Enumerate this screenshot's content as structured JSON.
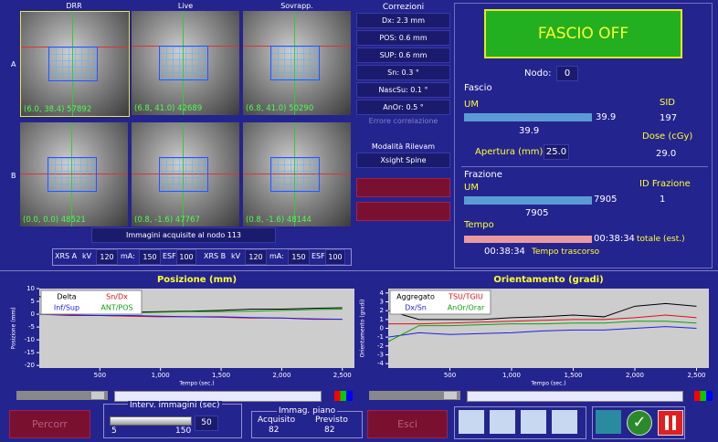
{
  "images": {
    "headers": [
      "DRR",
      "Live",
      "Sovrapp."
    ],
    "rows": [
      "A",
      "B"
    ],
    "captions": [
      [
        "(6.0, 38.4) 57892",
        "(6.8, 41.0) 42689",
        "(6.8, 41.0) 50290"
      ],
      [
        "(0.0, 0.0) 48521",
        "(0.8, -1.6) 47767",
        "(0.8, -1.6) 48144"
      ]
    ],
    "status": "Immagini acquisite al nodo 113"
  },
  "corrections": {
    "title": "Correzioni",
    "items": [
      "Dx: 2.3 mm",
      "POS: 0.6 mm",
      "SUP: 0.6 mm",
      "Sn: 0.3 °",
      "NascSu: 0.1 °",
      "AnOr: 0.5 °"
    ],
    "correlation_error": "Errore correlazione",
    "mode_label": "Modalità Rilevam",
    "mode": "Xsight Spine"
  },
  "xrs": [
    {
      "name": "XRS A",
      "kv_label": "kV",
      "kv": "120",
      "ma_label": "mA:",
      "ma": "150",
      "esf_label": "ESF",
      "esf": "100"
    },
    {
      "name": "XRS B",
      "kv_label": "kV",
      "kv": "120",
      "ma_label": "mA:",
      "ma": "150",
      "esf_label": "ESF",
      "esf": "100"
    }
  ],
  "beam": {
    "status": "FASCIO OFF",
    "node_label": "Nodo:",
    "node": "0",
    "fascio": {
      "title": "Fascio",
      "um_label": "UM",
      "um": "39.9",
      "um_below": "39.9",
      "sid_label": "SID",
      "sid": "197",
      "dose_label": "Dose (cGy)",
      "dose": "29.0",
      "aperture_label": "Apertura (mm):",
      "aperture": "25.0"
    },
    "fraction": {
      "title": "Frazione",
      "um_label": "UM",
      "um": "7905",
      "um_below": "7905",
      "id_label": "ID Frazione",
      "id": "1"
    },
    "time": {
      "title": "Tempo",
      "total": "00:38:34",
      "total_label": "totale (est.)",
      "elapsed": "00:38:34",
      "elapsed_label": "Tempo trascorso"
    }
  },
  "chart_data": [
    {
      "type": "line",
      "title": "Posizione (mm)",
      "x_label": "Tempo (sec.)",
      "y_label": "Posizione (mm)",
      "x": [
        0,
        250,
        500,
        750,
        1000,
        1250,
        1500,
        1750,
        2000,
        2250,
        2500
      ],
      "series": [
        {
          "name": "Delta",
          "color": "#000000",
          "values": [
            7,
            1,
            0.5,
            0.8,
            1,
            1.2,
            1.5,
            2,
            2,
            2.3,
            2.5
          ]
        },
        {
          "name": "Sn/Dx",
          "color": "#e01010",
          "values": [
            0,
            -0.5,
            -0.5,
            -0.8,
            -1,
            -1,
            -1.2,
            -1.5,
            -1.5,
            -2,
            -2
          ]
        },
        {
          "name": "Inf/Sup",
          "color": "#2020e0",
          "values": [
            0,
            -0.3,
            -0.5,
            -0.5,
            -0.8,
            -1,
            -1,
            -1.3,
            -1.5,
            -1.8,
            -2
          ]
        },
        {
          "name": "ANT/POS",
          "color": "#10a010",
          "values": [
            0,
            0.3,
            0.5,
            0.5,
            0.8,
            1,
            1,
            1.2,
            1.5,
            1.8,
            2
          ]
        }
      ],
      "xlim": [
        0,
        2600
      ],
      "ylim": [
        -21,
        10
      ],
      "xticks": [
        500,
        {
          "value": 1000,
          "label": "1,000"
        },
        {
          "value": 1500,
          "label": "1,500"
        },
        {
          "value": 2000,
          "label": "2,000"
        },
        {
          "value": 2500,
          "label": "2,500"
        }
      ],
      "yticks": [
        -20,
        -15,
        -10,
        -5,
        0,
        5,
        10
      ],
      "grid": false
    },
    {
      "type": "line",
      "title": "Orientamento (gradi)",
      "x_label": "Tempo (sec.)",
      "y_label": "Orientamento (gradi)",
      "x": [
        0,
        250,
        500,
        750,
        1000,
        1250,
        1500,
        1750,
        2000,
        2250,
        2500
      ],
      "series": [
        {
          "name": "Aggregato",
          "color": "#000000",
          "values": [
            2,
            1,
            1,
            1,
            1.2,
            1.3,
            1.5,
            1.3,
            2.5,
            2.8,
            2.5
          ]
        },
        {
          "name": "TSU/TGIU",
          "color": "#e01010",
          "values": [
            0.5,
            0.5,
            0.6,
            0.7,
            0.8,
            0.9,
            1,
            1,
            1.2,
            1.5,
            1.2
          ]
        },
        {
          "name": "Dx/Sn",
          "color": "#2020e0",
          "values": [
            -1,
            -0.5,
            -0.7,
            -0.6,
            -0.5,
            -0.3,
            -0.2,
            -0.2,
            0,
            0.2,
            0
          ]
        },
        {
          "name": "AnOr/Orar",
          "color": "#10a010",
          "values": [
            -1.5,
            0.3,
            0.3,
            0.4,
            0.5,
            0.5,
            0.6,
            0.6,
            0.8,
            0.8,
            0.6
          ]
        }
      ],
      "xlim": [
        0,
        2600
      ],
      "ylim": [
        -4.5,
        4.5
      ],
      "xticks": [
        500,
        {
          "value": 1000,
          "label": "1,000"
        },
        {
          "value": 1500,
          "label": "1,500"
        },
        {
          "value": 2000,
          "label": "2,000"
        },
        {
          "value": 2500,
          "label": "2,500"
        }
      ],
      "yticks": [
        -4,
        -3,
        -2,
        -1,
        0,
        1,
        2,
        3,
        4
      ],
      "grid": false
    }
  ],
  "controls": {
    "path_button": "Percorr",
    "interval_label": "Interv. immagini (sec)",
    "slider_min": "5",
    "slider_max": "150",
    "interval": "50",
    "plane_title": "Immag. piano",
    "acquired_label": "Acquisito",
    "acquired": "82",
    "planned_label": "Previsto",
    "planned": "82",
    "exit_button": "Esci"
  }
}
